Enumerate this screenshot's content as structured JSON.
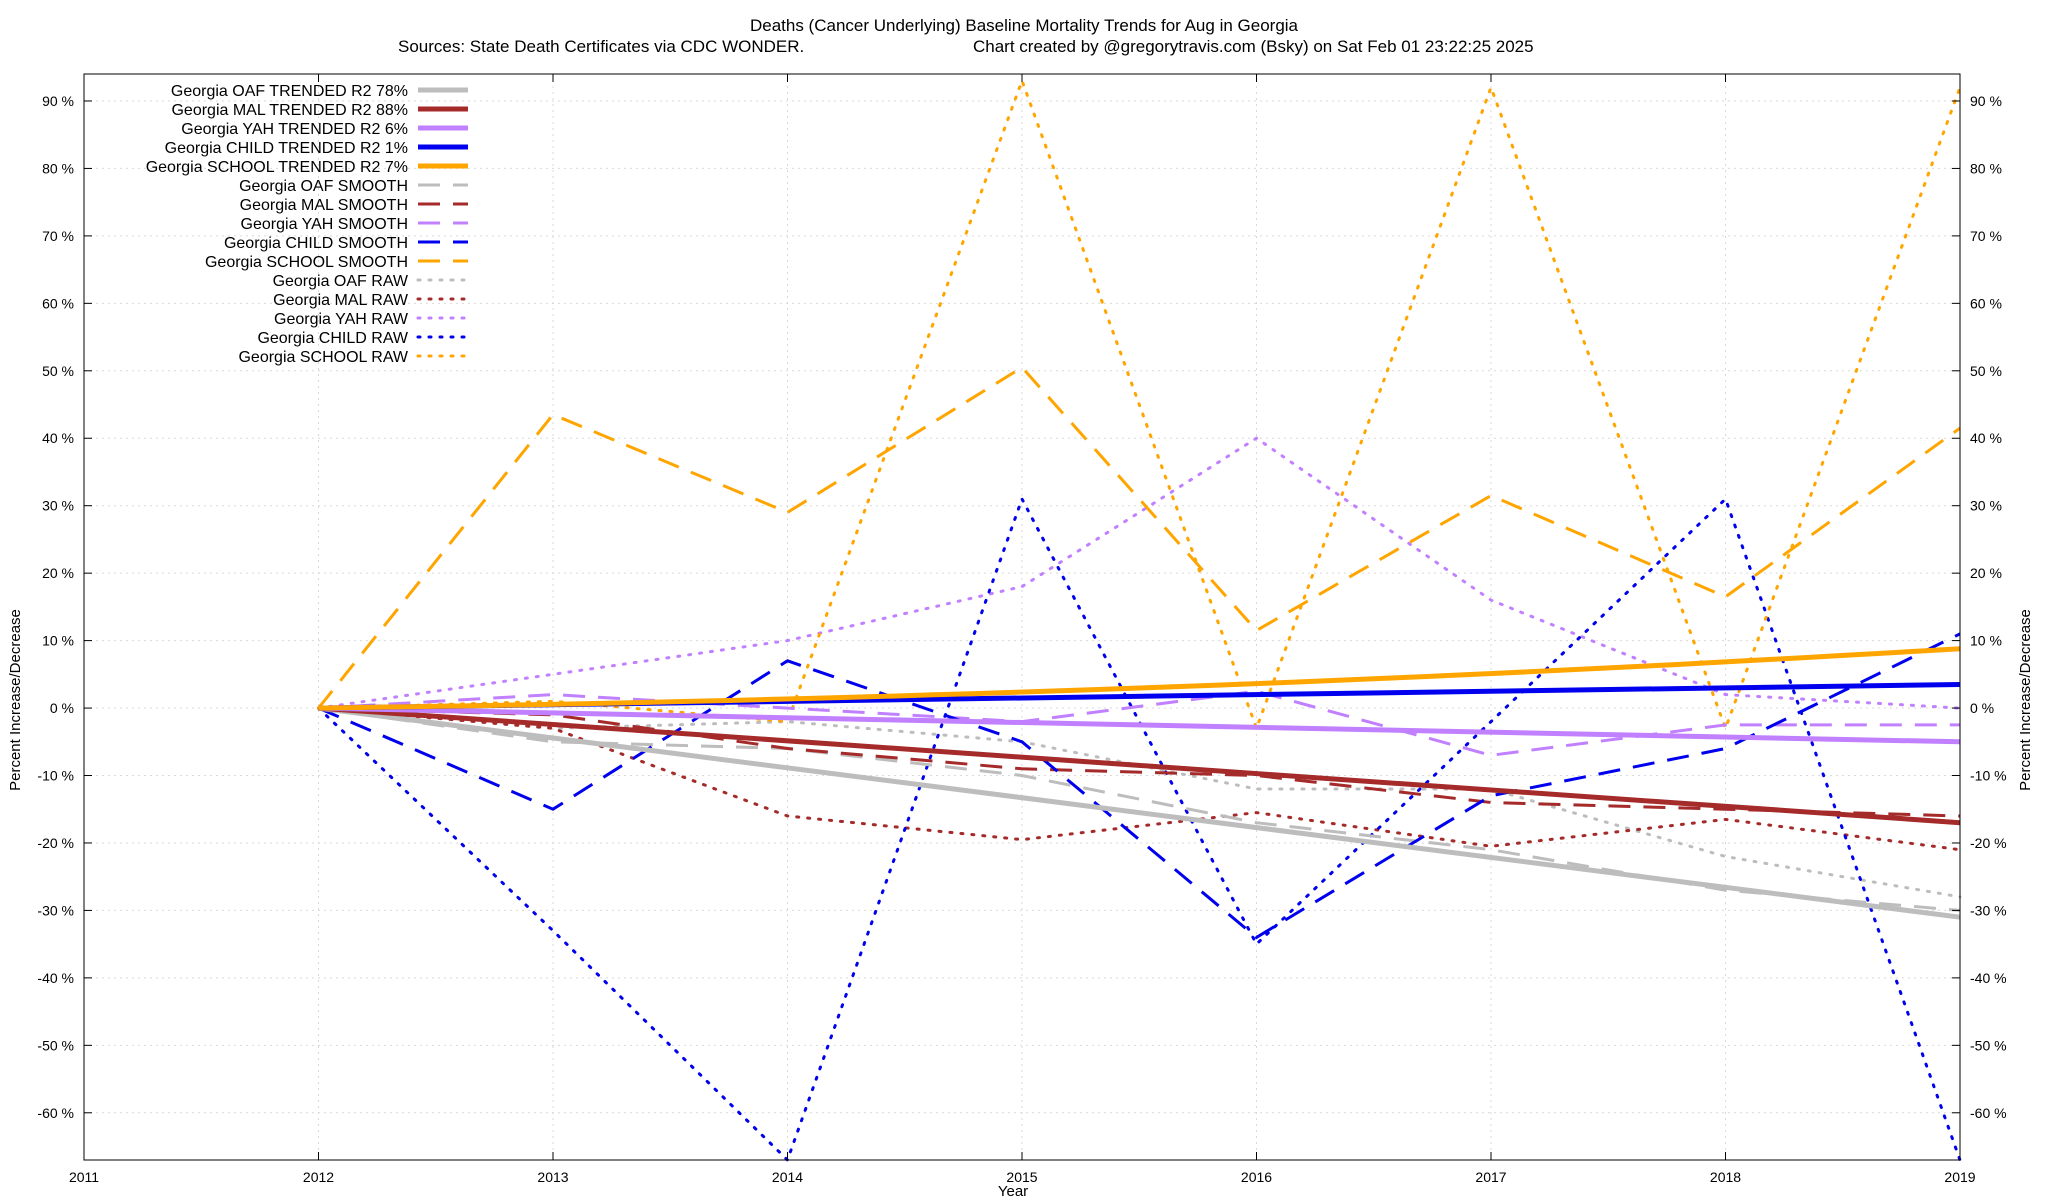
{
  "chart_data": {
    "type": "line",
    "title": "Deaths (Cancer Underlying)  Baseline Mortality Trends for Aug in Georgia",
    "subtitle_left": "Sources: State Death Certificates via CDC WONDER.",
    "subtitle_right": "Chart created by @gregorytravis.com (Bsky) on Sat Feb 01 23:22:25 2025",
    "xlabel": "Year",
    "ylabel_left": "Percent Increase/Decrease",
    "ylabel_right": "Percent Increase/Decrease",
    "xlim": [
      2011,
      2019
    ],
    "ylim": [
      -67,
      94
    ],
    "x_ticks": [
      2011,
      2012,
      2013,
      2014,
      2015,
      2016,
      2017,
      2018,
      2019
    ],
    "y_ticks": [
      -60,
      -50,
      -40,
      -30,
      -20,
      -10,
      0,
      10,
      20,
      30,
      40,
      50,
      60,
      70,
      80,
      90
    ],
    "y_tick_suffix": " %",
    "grid": true,
    "legend_position": "top-left",
    "series": [
      {
        "name": "Georgia OAF TRENDED R2  78%",
        "color": "#bdbdbd",
        "style": "solid",
        "x": [
          2012,
          2019
        ],
        "values": [
          0,
          -31
        ]
      },
      {
        "name": "Georgia MAL TRENDED R2  88%",
        "color": "#a52a2a",
        "style": "solid",
        "x": [
          2012,
          2019
        ],
        "values": [
          0,
          -17
        ]
      },
      {
        "name": "Georgia YAH TRENDED R2   6%",
        "color": "#c080ff",
        "style": "solid",
        "x": [
          2012,
          2019
        ],
        "values": [
          0,
          -5
        ]
      },
      {
        "name": "Georgia CHILD TRENDED R2   1%",
        "color": "#0000ee",
        "style": "solid",
        "x": [
          2012,
          2019
        ],
        "values": [
          0,
          3.5
        ]
      },
      {
        "name": "Georgia SCHOOL TRENDED R2   7%",
        "color": "#ffa500",
        "style": "solid",
        "curve": "quadratic",
        "x": [
          2012,
          2019
        ],
        "values": [
          0,
          8.8
        ]
      },
      {
        "name": "Georgia OAF SMOOTH",
        "color": "#bdbdbd",
        "style": "dashed",
        "x": [
          2012,
          2013,
          2014,
          2015,
          2016,
          2017,
          2018,
          2019
        ],
        "values": [
          0,
          -5,
          -6,
          -10,
          -17,
          -21,
          -27,
          -30
        ]
      },
      {
        "name": "Georgia MAL SMOOTH",
        "color": "#a52a2a",
        "style": "dashed",
        "x": [
          2012,
          2013,
          2014,
          2015,
          2016,
          2017,
          2018,
          2019
        ],
        "values": [
          0,
          -1,
          -6,
          -9,
          -10,
          -14,
          -15,
          -16
        ]
      },
      {
        "name": "Georgia YAH SMOOTH",
        "color": "#c080ff",
        "style": "dashed",
        "x": [
          2012,
          2013,
          2014,
          2015,
          2016,
          2017,
          2018,
          2019
        ],
        "values": [
          0,
          2,
          0,
          -2,
          2.5,
          -7,
          -2.5,
          -2.5
        ]
      },
      {
        "name": "Georgia CHILD SMOOTH",
        "color": "#0000ee",
        "style": "dashed",
        "x": [
          2012,
          2013,
          2014,
          2015,
          2016,
          2017,
          2018,
          2019
        ],
        "values": [
          0,
          -15,
          7,
          -5,
          -34,
          -13,
          -6,
          11
        ]
      },
      {
        "name": "Georgia SCHOOL SMOOTH",
        "color": "#ffa500",
        "style": "dashed",
        "x": [
          2012,
          2013,
          2014,
          2015,
          2016,
          2017,
          2018,
          2019
        ],
        "values": [
          0,
          43.5,
          29,
          50.5,
          11.5,
          31.5,
          16.5,
          41.5
        ]
      },
      {
        "name": "Georgia OAF RAW",
        "color": "#bdbdbd",
        "style": "dotted",
        "x": [
          2012,
          2013,
          2014,
          2015,
          2016,
          2017,
          2018,
          2019
        ],
        "values": [
          0,
          -3,
          -2,
          -5,
          -12,
          -12,
          -22,
          -28
        ]
      },
      {
        "name": "Georgia MAL RAW",
        "color": "#a52a2a",
        "style": "dotted",
        "x": [
          2012,
          2013,
          2014,
          2015,
          2016,
          2017,
          2018,
          2019
        ],
        "values": [
          0,
          -3,
          -16,
          -19.5,
          -15.5,
          -20.5,
          -16.5,
          -21
        ]
      },
      {
        "name": "Georgia YAH RAW",
        "color": "#c080ff",
        "style": "dotted",
        "x": [
          2012,
          2013,
          2014,
          2015,
          2016,
          2017,
          2018,
          2019
        ],
        "values": [
          0,
          5,
          10,
          18,
          40,
          16,
          2,
          0
        ]
      },
      {
        "name": "Georgia CHILD RAW",
        "color": "#0000ee",
        "style": "dotted",
        "x": [
          2012,
          2013,
          2014,
          2015,
          2016,
          2017,
          2018,
          2019
        ],
        "values": [
          0,
          -33,
          -67,
          31,
          -35,
          -2,
          31,
          -67
        ]
      },
      {
        "name": "Georgia SCHOOL RAW",
        "color": "#ffa500",
        "style": "dotted",
        "x": [
          2012,
          2013,
          2014,
          2015,
          2016,
          2017,
          2018,
          2019
        ],
        "values": [
          0,
          1,
          -2,
          93,
          -3,
          92,
          -3,
          92
        ]
      }
    ]
  }
}
